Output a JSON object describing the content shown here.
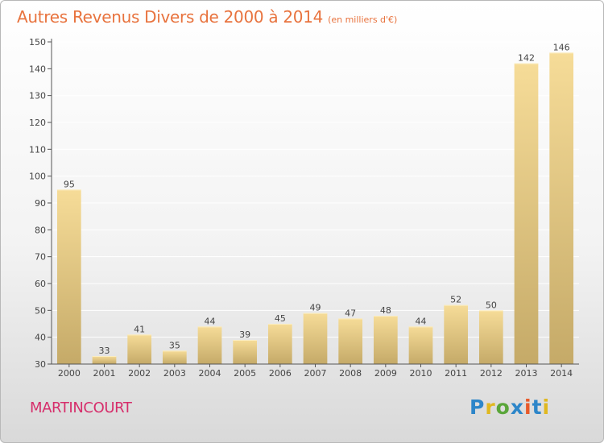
{
  "chart_data": {
    "type": "bar",
    "title": "Autres Revenus Divers de 2000 à 2014",
    "subtitle": "(en milliers d'€)",
    "xlabel": "",
    "ylabel": "",
    "categories": [
      "2000",
      "2001",
      "2002",
      "2003",
      "2004",
      "2005",
      "2006",
      "2007",
      "2008",
      "2009",
      "2010",
      "2011",
      "2012",
      "2013",
      "2014"
    ],
    "values": [
      95,
      33,
      41,
      35,
      44,
      39,
      45,
      49,
      47,
      48,
      44,
      52,
      50,
      142,
      146
    ],
    "data_labels": [
      "95",
      "33",
      "41",
      "35",
      "44",
      "39",
      "45",
      "49",
      "47",
      "48",
      "44",
      "52",
      "50",
      "142",
      "146"
    ],
    "ylim": [
      30,
      150
    ],
    "yticks": [
      30,
      40,
      50,
      60,
      70,
      80,
      90,
      100,
      110,
      120,
      130,
      140,
      150
    ],
    "ytick_labels": [
      "30",
      "40",
      "50",
      "60",
      "70",
      "80",
      "90",
      "100",
      "110",
      "120",
      "130",
      "140",
      "150"
    ],
    "grid": true,
    "legend": "none",
    "colors": {
      "bar_light": "#f6dc98",
      "bar_dark": "#c5aa68",
      "title": "#e8733e",
      "grid": "#ffffff",
      "axis": "#555555"
    }
  },
  "footer": {
    "commune": "MARTINCOURT"
  },
  "logo": {
    "text": "Proxiti",
    "letters": [
      "P",
      "r",
      "o",
      "x",
      "i",
      "t",
      "i"
    ],
    "letter_colors": [
      "#2d86c9",
      "#e0b820",
      "#5aa63a",
      "#2d86c9",
      "#e85a2a",
      "#2d86c9",
      "#e0b820"
    ]
  }
}
